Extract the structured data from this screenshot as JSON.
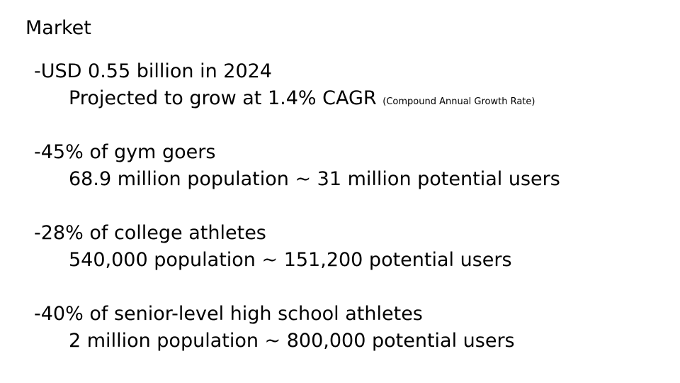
{
  "title": "Market",
  "items": [
    {
      "heading": "-USD 0.55 billion in 2024",
      "detail": "Projected to grow at 1.4% CAGR",
      "note": "(Compound Annual Growth Rate)"
    },
    {
      "heading": "-45% of gym goers",
      "detail": "68.9 million population ~ 31 million potential users"
    },
    {
      "heading": "-28% of college athletes",
      "detail": "540,000 population ~ 151,200 potential users"
    },
    {
      "heading": "-40% of senior-level high school athletes",
      "detail": "2 million population ~ 800,000 potential users"
    }
  ]
}
